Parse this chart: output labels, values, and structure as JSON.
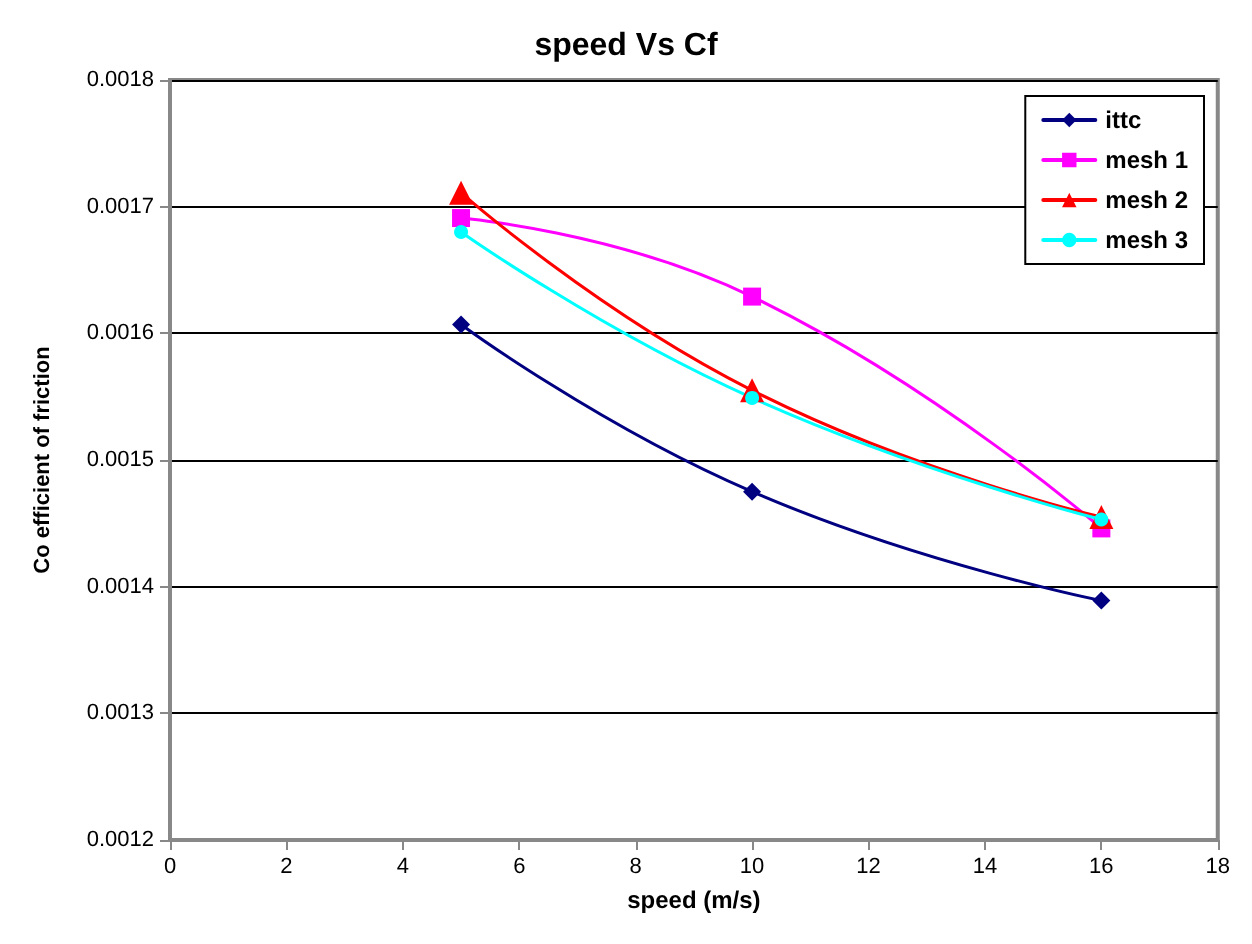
{
  "chart_data": {
    "type": "line",
    "title": "speed Vs Cf",
    "xlabel": "speed (m/s)",
    "ylabel": "Co efficient of friction",
    "x": [
      5,
      10,
      16
    ],
    "series": [
      {
        "name": "ittc",
        "color": "#000080",
        "marker": "diamond",
        "values": [
          0.001607,
          0.001475,
          0.001389
        ]
      },
      {
        "name": "mesh 1",
        "color": "#ff00ff",
        "marker": "square",
        "values": [
          0.001691,
          0.001629,
          0.001446
        ]
      },
      {
        "name": "mesh 2",
        "color": "#ff0000",
        "marker": "triangle",
        "values": [
          0.001711,
          0.001555,
          0.001455
        ]
      },
      {
        "name": "mesh 3",
        "color": "#00ffff",
        "marker": "circle",
        "values": [
          0.00168,
          0.001549,
          0.001453
        ]
      }
    ],
    "xlim": [
      0,
      18
    ],
    "xticks": [
      0,
      2,
      4,
      6,
      8,
      10,
      12,
      14,
      16,
      18
    ],
    "ylim": [
      0.0012,
      0.0018
    ],
    "yticks": [
      0.0012,
      0.0013,
      0.0014,
      0.0015,
      0.0016,
      0.0017,
      0.0018
    ],
    "grid": "y",
    "legend": "top right",
    "line_style": "solid"
  }
}
